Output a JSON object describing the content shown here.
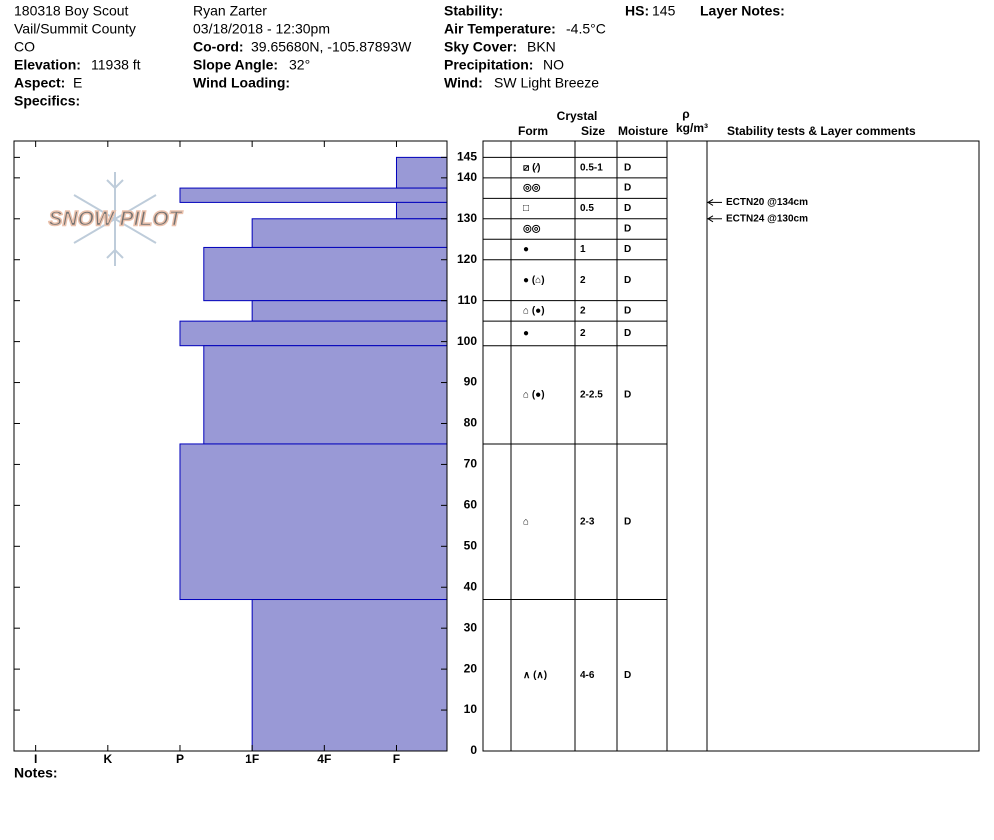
{
  "header": {
    "site": [
      "180318 Boy Scout",
      "Vail/Summit County",
      "CO"
    ],
    "elevation_label": "Elevation:",
    "elevation": "11938 ft",
    "aspect_label": "Aspect:",
    "aspect": "E",
    "specifics_label": "Specifics:",
    "observer": "Ryan Zarter",
    "datetime": "03/18/2018 - 12:30pm",
    "coord_label": "Co-ord:",
    "coord": "39.65680N, -105.87893W",
    "slope_label": "Slope Angle:",
    "slope": "32°",
    "wind_loading_label": "Wind Loading:",
    "stability_label": "Stability:",
    "air_temp_label": "Air Temperature:",
    "air_temp": "-4.5°C",
    "sky_label": "Sky Cover:",
    "sky": "BKN",
    "precip_label": "Precipitation:",
    "precip": "NO",
    "wind_label": "Wind:",
    "wind": "SW Light Breeze",
    "hs_label": "HS:",
    "hs": "145",
    "layer_notes_label": "Layer Notes:",
    "notes_label": "Notes:",
    "logo": "SNOW PILOT"
  },
  "chart_data": {
    "type": "bar",
    "color": "#9999d6",
    "ylim": [
      0,
      149
    ],
    "yticks": [
      0,
      10,
      20,
      30,
      40,
      50,
      60,
      70,
      80,
      90,
      100,
      110,
      120,
      130,
      140,
      145
    ],
    "xlim": [
      6.3,
      0.3
    ],
    "xticks": [
      {
        "value": 6,
        "label": "I"
      },
      {
        "value": 5,
        "label": "K"
      },
      {
        "value": 4,
        "label": "P"
      },
      {
        "value": 3,
        "label": "1F"
      },
      {
        "value": 2,
        "label": "4F"
      },
      {
        "value": 1,
        "label": "F"
      }
    ],
    "layers": [
      {
        "top": 145,
        "bottom": 137.5,
        "hardness": 1
      },
      {
        "top": 137.5,
        "bottom": 134,
        "hardness": 4
      },
      {
        "top": 134,
        "bottom": 130,
        "hardness": 1
      },
      {
        "top": 130,
        "bottom": 123,
        "hardness": 3
      },
      {
        "top": 123,
        "bottom": 110,
        "hardness": 3.67
      },
      {
        "top": 110,
        "bottom": 105,
        "hardness": 3
      },
      {
        "top": 105,
        "bottom": 99,
        "hardness": 4
      },
      {
        "top": 99,
        "bottom": 75,
        "hardness": 3.67
      },
      {
        "top": 75,
        "bottom": 37,
        "hardness": 4
      },
      {
        "top": 37,
        "bottom": 0,
        "hardness": 3
      }
    ]
  },
  "table": {
    "headers": {
      "crystal": "Crystal",
      "form": "Form",
      "size": "Size",
      "moisture": "Moisture",
      "rho": "ρ",
      "density_unit": "kg/m³",
      "comments": "Stability tests & Layer comments"
    },
    "rows": [
      {
        "top": 145,
        "bottom": 140,
        "form": "⧄ (⁄)",
        "size": "0.5-1",
        "moisture": "D"
      },
      {
        "top": 140,
        "bottom": 135,
        "form": "◎◎",
        "moisture": "D"
      },
      {
        "top": 135,
        "bottom": 130,
        "form": "□",
        "size": "0.5",
        "moisture": "D"
      },
      {
        "top": 130,
        "bottom": 125,
        "form": "◎◎",
        "moisture": "D"
      },
      {
        "top": 125,
        "bottom": 120,
        "form": "●",
        "size": "1",
        "moisture": "D"
      },
      {
        "top": 120,
        "bottom": 110,
        "form": "● (⌂)",
        "size": "2",
        "moisture": "D"
      },
      {
        "top": 110,
        "bottom": 105,
        "form": "⌂ (●)",
        "size": "2",
        "moisture": "D"
      },
      {
        "top": 105,
        "bottom": 99,
        "form": "●",
        "size": "2",
        "moisture": "D"
      },
      {
        "top": 99,
        "bottom": 75,
        "form": "⌂ (●)",
        "size": "2-2.5",
        "moisture": "D"
      },
      {
        "top": 75,
        "bottom": 37,
        "form": "⌂",
        "size": "2-3",
        "moisture": "D"
      },
      {
        "top": 37,
        "bottom": 0,
        "form": "∧ (∧)",
        "size": "4-6",
        "moisture": "D"
      }
    ],
    "tests": [
      {
        "label": "ECTN20 @134cm",
        "height": 134
      },
      {
        "label": "ECTN24 @130cm",
        "height": 130
      }
    ]
  }
}
